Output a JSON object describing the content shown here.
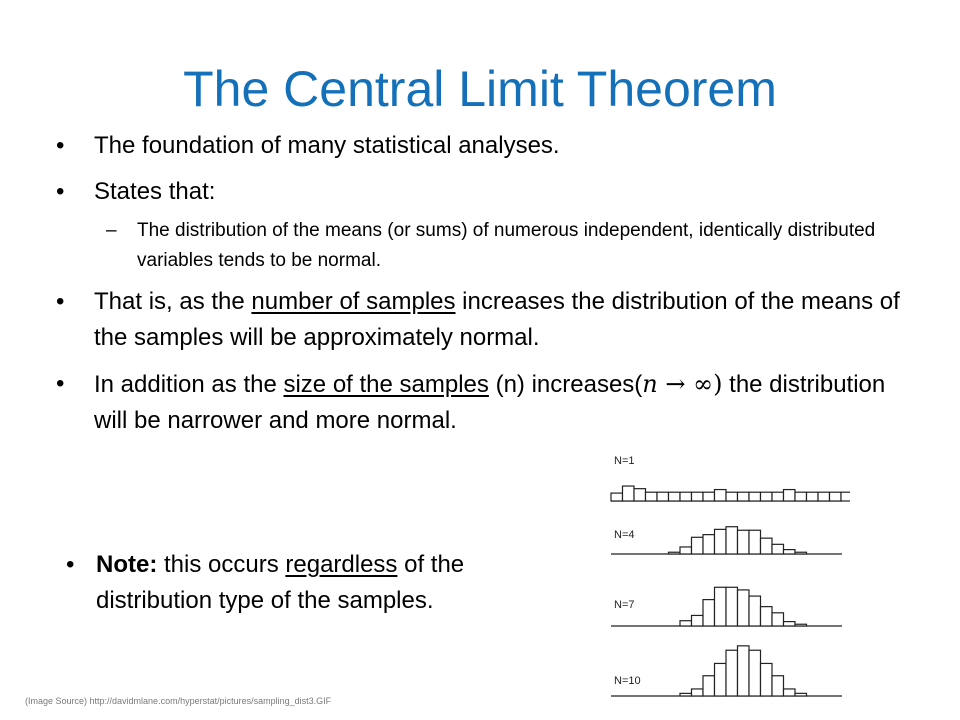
{
  "title": "The Central Limit Theorem",
  "bullets": {
    "b1": "The foundation of many statistical analyses.",
    "b2": "States that:",
    "b2_sub": "The distribution of the means (or sums) of numerous independent, identically distributed variables tends to be normal.",
    "b3_pre": "That is, as the ",
    "b3_u": "number of samples",
    "b3_post": " increases the distribution of the means of the samples will be approximately normal.",
    "b4_pre": "In addition as the ",
    "b4_u": "size of the samples",
    "b4_mid": " (n) increases(",
    "b4_n": "n",
    "b4_arrow": " → ∞)",
    "b4_post": " the distribution will be narrower and more normal."
  },
  "note": {
    "bold": "Note:",
    "pre": " this occurs ",
    "u": "regardless",
    "post": " of the distribution type of the samples."
  },
  "source": "(Image Source) http://davidmlane.com/hyperstat/pictures/sampling_dist3.GIF",
  "chart_data": {
    "type": "bar",
    "panels": [
      {
        "label": "N=1",
        "values": [
          9,
          17,
          14,
          10,
          10,
          10,
          10,
          10,
          10,
          13,
          10,
          10,
          10,
          10,
          10,
          13,
          10,
          10,
          10,
          10,
          10
        ]
      },
      {
        "label": "N=4",
        "values": [
          0,
          0,
          0,
          0,
          0,
          2,
          8,
          19,
          22,
          28,
          31,
          27,
          27,
          18,
          11,
          5,
          2,
          0,
          0,
          0,
          0
        ]
      },
      {
        "label": "N=7",
        "values": [
          0,
          0,
          0,
          0,
          0,
          0,
          6,
          12,
          30,
          44,
          44,
          41,
          34,
          22,
          15,
          5,
          2,
          0,
          0,
          0,
          0
        ]
      },
      {
        "label": "N=10",
        "values": [
          0,
          0,
          0,
          0,
          0,
          0,
          3,
          8,
          23,
          37,
          52,
          57,
          52,
          37,
          23,
          8,
          3,
          0,
          0,
          0,
          0
        ]
      }
    ]
  }
}
